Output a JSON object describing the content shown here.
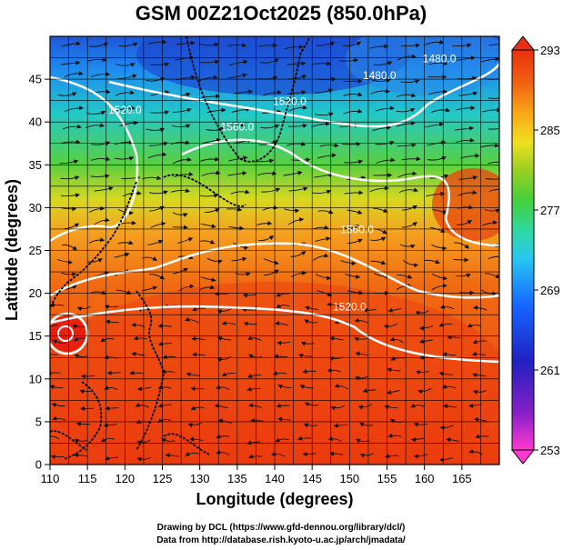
{
  "chart_data": {
    "type": "heatmap",
    "title": "GSM 00Z21Oct2025 (850.0hPa)",
    "xlabel": "Longitude (degrees)",
    "ylabel": "Latitude  (degrees)",
    "xlim": [
      110,
      170
    ],
    "ylim": [
      0,
      50
    ],
    "xticks": [
      "110",
      "115",
      "120",
      "125",
      "130",
      "135",
      "140",
      "145",
      "150",
      "155",
      "160",
      "165"
    ],
    "yticks": [
      "0",
      "5",
      "10",
      "15",
      "20",
      "25",
      "30",
      "35",
      "40",
      "45"
    ],
    "colorbar": {
      "min": 253,
      "max": 293,
      "ticks": [
        "293",
        "285",
        "277",
        "269",
        "261",
        "253"
      ],
      "colors": [
        "#ff3ad0",
        "#2020c0",
        "#1565ff",
        "#28c8f0",
        "#30d8a0",
        "#40d040",
        "#9ad020",
        "#f0e020",
        "#f8a818",
        "#f06010",
        "#e83010"
      ]
    },
    "contour_labels": [
      {
        "text": "1480.0",
        "lon": 162,
        "lat": 47
      },
      {
        "text": "1480.0",
        "lon": 154,
        "lat": 45
      },
      {
        "text": "1520.0",
        "lon": 142,
        "lat": 42
      },
      {
        "text": "1520.0",
        "lon": 120,
        "lat": 41
      },
      {
        "text": "1560.0",
        "lon": 135,
        "lat": 39
      },
      {
        "text": "1560.0",
        "lon": 151,
        "lat": 27
      },
      {
        "text": "1520.0",
        "lon": 150,
        "lat": 18
      }
    ],
    "cyclone_center": {
      "lon": 112,
      "lat": 16
    }
  },
  "footer": {
    "credit_line1": "Drawing by DCL (https://www.gfd-dennou.org/library/dcl/)",
    "credit_line2": "Data from http://database.rish.kyoto-u.ac.jp/arch/jmadata/"
  }
}
